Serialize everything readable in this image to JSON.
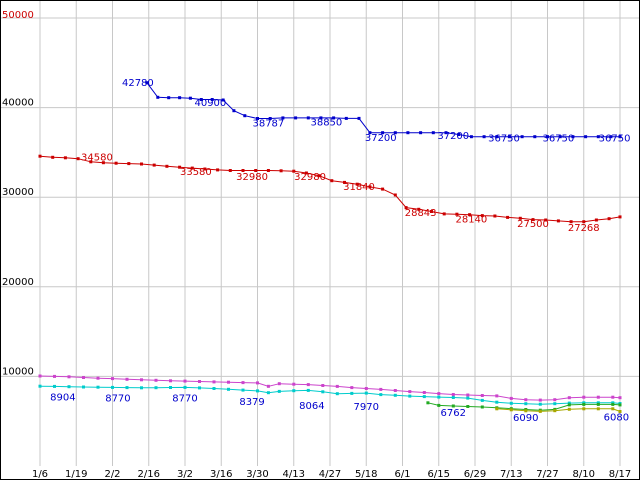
{
  "chart_data": {
    "type": "line",
    "title": "",
    "background_color": "#ffffff",
    "grid_color": "#c8c8c8",
    "border_color": "#000000",
    "axis_text_color": "#000000",
    "legend": "none",
    "grid": "on",
    "ylim": [
      0,
      50000
    ],
    "x_tick_labels": [
      "1/6",
      "1/19",
      "2/2",
      "2/16",
      "3/2",
      "3/16",
      "3/30",
      "4/13",
      "4/27",
      "5/18",
      "6/1",
      "6/15",
      "6/29",
      "7/13",
      "7/27",
      "8/10",
      "8/17"
    ],
    "y_ticks": [
      {
        "value": 10000,
        "label": "10000",
        "color": "#000000"
      },
      {
        "value": 20000,
        "label": "20000",
        "color": "#000000"
      },
      {
        "value": 30000,
        "label": "30000",
        "color": "#000000"
      },
      {
        "value": 40000,
        "label": "40000",
        "color": "#000000"
      },
      {
        "value": 50000,
        "label": "50000",
        "color": "#cc0000"
      }
    ],
    "series": [
      {
        "name": "series-blue",
        "color": "#0000cc",
        "points": [
          [
            2.95,
            42780
          ],
          [
            3.25,
            41150
          ],
          [
            3.55,
            41100
          ],
          [
            3.85,
            41100
          ],
          [
            4.15,
            41050
          ],
          [
            4.45,
            40900
          ],
          [
            4.75,
            40900
          ],
          [
            5.05,
            40850
          ],
          [
            5.35,
            39650
          ],
          [
            5.65,
            39100
          ],
          [
            6.0,
            38787
          ],
          [
            6.35,
            38787
          ],
          [
            6.7,
            38850
          ],
          [
            7.05,
            38850
          ],
          [
            7.4,
            38850
          ],
          [
            7.75,
            38850
          ],
          [
            8.1,
            38850
          ],
          [
            8.45,
            38800
          ],
          [
            8.8,
            38800
          ],
          [
            9.1,
            37200
          ],
          [
            9.45,
            37200
          ],
          [
            9.8,
            37200
          ],
          [
            10.15,
            37200
          ],
          [
            10.5,
            37200
          ],
          [
            10.85,
            37200
          ],
          [
            11.2,
            37200
          ],
          [
            11.55,
            37000
          ],
          [
            11.9,
            36750
          ],
          [
            12.25,
            36750
          ],
          [
            12.6,
            36750
          ],
          [
            12.95,
            36750
          ],
          [
            13.3,
            36750
          ],
          [
            13.65,
            36750
          ],
          [
            14.0,
            36750
          ],
          [
            14.35,
            36750
          ],
          [
            14.7,
            36750
          ],
          [
            15.05,
            36750
          ],
          [
            15.4,
            36750
          ],
          [
            15.75,
            36750
          ],
          [
            16,
            36750
          ]
        ]
      },
      {
        "name": "series-red",
        "color": "#cc0000",
        "points": [
          [
            0,
            34580
          ],
          [
            0.35,
            34450
          ],
          [
            0.7,
            34400
          ],
          [
            1.05,
            34300
          ],
          [
            1.4,
            33950
          ],
          [
            1.75,
            33850
          ],
          [
            2.1,
            33800
          ],
          [
            2.45,
            33750
          ],
          [
            2.8,
            33700
          ],
          [
            3.15,
            33580
          ],
          [
            3.5,
            33450
          ],
          [
            3.85,
            33350
          ],
          [
            4.2,
            33250
          ],
          [
            4.55,
            33150
          ],
          [
            4.9,
            33050
          ],
          [
            5.25,
            32980
          ],
          [
            5.6,
            32980
          ],
          [
            5.95,
            32980
          ],
          [
            6.3,
            32980
          ],
          [
            6.65,
            32950
          ],
          [
            7.0,
            32900
          ],
          [
            7.35,
            32700
          ],
          [
            7.7,
            32400
          ],
          [
            8.05,
            31840
          ],
          [
            8.4,
            31650
          ],
          [
            8.75,
            31450
          ],
          [
            9.1,
            31150
          ],
          [
            9.45,
            30900
          ],
          [
            9.8,
            30250
          ],
          [
            10.1,
            28843
          ],
          [
            10.45,
            28650
          ],
          [
            10.8,
            28400
          ],
          [
            11.15,
            28140
          ],
          [
            11.5,
            28100
          ],
          [
            11.85,
            28050
          ],
          [
            12.2,
            27950
          ],
          [
            12.55,
            27900
          ],
          [
            12.9,
            27750
          ],
          [
            13.25,
            27650
          ],
          [
            13.6,
            27500
          ],
          [
            13.95,
            27450
          ],
          [
            14.3,
            27350
          ],
          [
            14.65,
            27268
          ],
          [
            15.0,
            27268
          ],
          [
            15.35,
            27450
          ],
          [
            15.7,
            27600
          ],
          [
            16,
            27800
          ]
        ]
      },
      {
        "name": "series-magenta",
        "color": "#cc44cc",
        "points": [
          [
            0,
            10050
          ],
          [
            0.4,
            10000
          ],
          [
            0.8,
            9950
          ],
          [
            1.2,
            9880
          ],
          [
            1.6,
            9800
          ],
          [
            2.0,
            9750
          ],
          [
            2.4,
            9680
          ],
          [
            2.8,
            9620
          ],
          [
            3.2,
            9560
          ],
          [
            3.6,
            9510
          ],
          [
            4.0,
            9470
          ],
          [
            4.4,
            9430
          ],
          [
            4.8,
            9390
          ],
          [
            5.2,
            9350
          ],
          [
            5.6,
            9310
          ],
          [
            6.0,
            9270
          ],
          [
            6.3,
            8900
          ],
          [
            6.6,
            9180
          ],
          [
            7.0,
            9130
          ],
          [
            7.4,
            9080
          ],
          [
            7.8,
            8980
          ],
          [
            8.2,
            8880
          ],
          [
            8.6,
            8750
          ],
          [
            9.0,
            8650
          ],
          [
            9.4,
            8550
          ],
          [
            9.8,
            8430
          ],
          [
            10.2,
            8300
          ],
          [
            10.6,
            8200
          ],
          [
            11.0,
            8080
          ],
          [
            11.4,
            7980
          ],
          [
            11.8,
            7920
          ],
          [
            12.2,
            7870
          ],
          [
            12.6,
            7820
          ],
          [
            13.0,
            7550
          ],
          [
            13.4,
            7400
          ],
          [
            13.8,
            7350
          ],
          [
            14.2,
            7400
          ],
          [
            14.6,
            7620
          ],
          [
            15.0,
            7680
          ],
          [
            15.4,
            7680
          ],
          [
            15.8,
            7680
          ],
          [
            16,
            7620
          ]
        ]
      },
      {
        "name": "series-cyan",
        "color": "#00cccc",
        "points": [
          [
            0,
            8904
          ],
          [
            0.4,
            8880
          ],
          [
            0.8,
            8850
          ],
          [
            1.2,
            8820
          ],
          [
            1.6,
            8790
          ],
          [
            2.0,
            8770
          ],
          [
            2.4,
            8750
          ],
          [
            2.8,
            8730
          ],
          [
            3.2,
            8740
          ],
          [
            3.6,
            8760
          ],
          [
            4.0,
            8770
          ],
          [
            4.4,
            8720
          ],
          [
            4.8,
            8650
          ],
          [
            5.2,
            8560
          ],
          [
            5.6,
            8470
          ],
          [
            6.0,
            8379
          ],
          [
            6.3,
            8180
          ],
          [
            6.6,
            8330
          ],
          [
            7.0,
            8400
          ],
          [
            7.4,
            8440
          ],
          [
            7.8,
            8280
          ],
          [
            8.2,
            8064
          ],
          [
            8.6,
            8100
          ],
          [
            9.0,
            8140
          ],
          [
            9.4,
            7970
          ],
          [
            9.8,
            7890
          ],
          [
            10.2,
            7800
          ],
          [
            10.6,
            7740
          ],
          [
            11.0,
            7690
          ],
          [
            11.4,
            7640
          ],
          [
            11.8,
            7580
          ],
          [
            12.2,
            7320
          ],
          [
            12.6,
            7120
          ],
          [
            13.0,
            7000
          ],
          [
            13.4,
            6950
          ],
          [
            13.8,
            6900
          ],
          [
            14.2,
            6950
          ],
          [
            14.6,
            7020
          ],
          [
            15.0,
            7050
          ],
          [
            15.4,
            7050
          ],
          [
            15.8,
            7050
          ],
          [
            16,
            6980
          ]
        ]
      },
      {
        "name": "series-green",
        "color": "#22aa22",
        "points": [
          [
            10.7,
            7050
          ],
          [
            11.0,
            6762
          ],
          [
            11.4,
            6700
          ],
          [
            11.8,
            6640
          ],
          [
            12.2,
            6580
          ],
          [
            12.6,
            6490
          ],
          [
            13.0,
            6400
          ],
          [
            13.4,
            6310
          ],
          [
            13.8,
            6230
          ],
          [
            14.2,
            6320
          ],
          [
            14.6,
            6820
          ],
          [
            15.0,
            6880
          ],
          [
            15.4,
            6880
          ],
          [
            15.8,
            6880
          ],
          [
            16,
            6820
          ]
        ]
      },
      {
        "name": "series-olive",
        "color": "#a8a800",
        "points": [
          [
            12.6,
            6380
          ],
          [
            13.0,
            6270
          ],
          [
            13.4,
            6160
          ],
          [
            13.8,
            6090
          ],
          [
            14.2,
            6170
          ],
          [
            14.6,
            6330
          ],
          [
            15.0,
            6380
          ],
          [
            15.4,
            6380
          ],
          [
            15.8,
            6380
          ],
          [
            16,
            6080
          ]
        ]
      }
    ],
    "point_labels": [
      {
        "text": "42780",
        "x": 2.7,
        "value": 42400,
        "color": "#0000cc"
      },
      {
        "text": "40900",
        "x": 4.7,
        "value": 40200,
        "color": "#0000cc"
      },
      {
        "text": "38787",
        "x": 6.3,
        "value": 37900,
        "color": "#0000cc"
      },
      {
        "text": "38850",
        "x": 7.9,
        "value": 38000,
        "color": "#0000cc"
      },
      {
        "text": "37200",
        "x": 9.4,
        "value": 36300,
        "color": "#0000cc"
      },
      {
        "text": "37200",
        "x": 11.4,
        "value": 36500,
        "color": "#0000cc"
      },
      {
        "text": "36750",
        "x": 12.8,
        "value": 36200,
        "color": "#0000cc"
      },
      {
        "text": "36750",
        "x": 14.3,
        "value": 36200,
        "color": "#0000cc"
      },
      {
        "text": "36750",
        "x": 15.85,
        "value": 36200,
        "color": "#0000cc"
      },
      {
        "text": "34580",
        "x": 1.57,
        "value": 34100,
        "color": "#cc0000"
      },
      {
        "text": "33580",
        "x": 4.3,
        "value": 32500,
        "color": "#cc0000"
      },
      {
        "text": "32980",
        "x": 5.85,
        "value": 31900,
        "color": "#cc0000"
      },
      {
        "text": "32980",
        "x": 7.45,
        "value": 31900,
        "color": "#cc0000"
      },
      {
        "text": "31840",
        "x": 8.8,
        "value": 30800,
        "color": "#cc0000"
      },
      {
        "text": "28843",
        "x": 10.5,
        "value": 27900,
        "color": "#cc0000"
      },
      {
        "text": "28140",
        "x": 11.9,
        "value": 27200,
        "color": "#cc0000"
      },
      {
        "text": "27500",
        "x": 13.6,
        "value": 26700,
        "color": "#cc0000"
      },
      {
        "text": "27268",
        "x": 15.0,
        "value": 26200,
        "color": "#cc0000"
      },
      {
        "text": "8904",
        "x": 0.63,
        "value": 7300,
        "color": "#0000cc"
      },
      {
        "text": "8770",
        "x": 2.15,
        "value": 7200,
        "color": "#0000cc"
      },
      {
        "text": "8770",
        "x": 4.0,
        "value": 7200,
        "color": "#0000cc"
      },
      {
        "text": "8379",
        "x": 5.85,
        "value": 6800,
        "color": "#0000cc"
      },
      {
        "text": "8064",
        "x": 7.5,
        "value": 6350,
        "color": "#0000cc"
      },
      {
        "text": "7970",
        "x": 9.0,
        "value": 6250,
        "color": "#0000cc"
      },
      {
        "text": "6762",
        "x": 11.4,
        "value": 5600,
        "color": "#0000cc"
      },
      {
        "text": "6090",
        "x": 13.4,
        "value": 5000,
        "color": "#0000cc"
      },
      {
        "text": "6080",
        "x": 15.9,
        "value": 5100,
        "color": "#0000cc"
      }
    ]
  }
}
